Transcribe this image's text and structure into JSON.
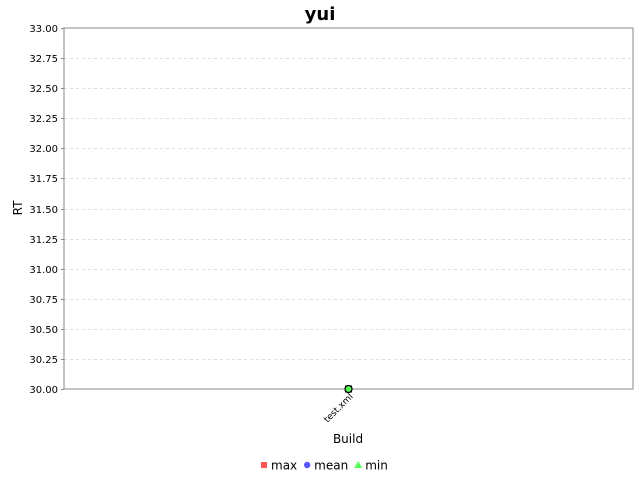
{
  "chart_data": {
    "type": "line",
    "title": "yui",
    "xlabel": "Build",
    "ylabel": "RT",
    "categories": [
      "test.xml"
    ],
    "ylim": [
      30.0,
      33.0
    ],
    "yticks": [
      "30.00",
      "30.25",
      "30.50",
      "30.75",
      "31.00",
      "31.25",
      "31.50",
      "31.75",
      "32.00",
      "32.25",
      "32.50",
      "32.75",
      "33.00"
    ],
    "grid": true,
    "legend_position": "bottom",
    "series": [
      {
        "name": "max",
        "values": [
          30.0
        ],
        "color": "#ff5555",
        "marker": "square"
      },
      {
        "name": "mean",
        "values": [
          30.0
        ],
        "color": "#5555ff",
        "marker": "circle"
      },
      {
        "name": "min",
        "values": [
          30.0
        ],
        "color": "#55ff55",
        "marker": "triangle"
      }
    ]
  }
}
